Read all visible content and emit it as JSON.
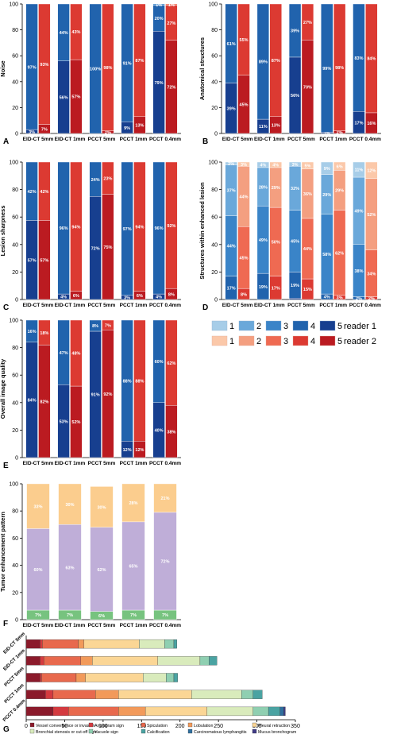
{
  "colors": {
    "reader1": [
      "#a7cde8",
      "#6aa8da",
      "#3a84c8",
      "#2163ad",
      "#173f8f"
    ],
    "reader2": [
      "#fbc8a9",
      "#f49f80",
      "#ef6a52",
      "#dc3a32",
      "#bb1b21"
    ],
    "enhancement": [
      "#77c37f",
      "#bfaed8",
      "#fbcd8e"
    ],
    "signs": [
      "#8b1a2b",
      "#d43a3f",
      "#e8694d",
      "#f29a5a",
      "#fbd695",
      "#d9ebbc",
      "#8fcfb1",
      "#4aa3a2",
      "#2f6f9f",
      "#413b86"
    ]
  },
  "chart_data": [
    {
      "panel": "A",
      "type": "bar",
      "stacked": true,
      "ylabel": "Noise",
      "ylim": [
        0,
        100
      ],
      "yticks": [
        "0",
        "20",
        "40",
        "60",
        "80",
        "100"
      ],
      "categories": [
        "EID-CT 5mm",
        "EID-CT 1mm",
        "PCCT 5mm",
        "PCCT 1mm",
        "PCCT 0.4mm"
      ],
      "series": [
        {
          "name": "reader 1",
          "values": [
            [
              0,
              0,
              0,
              97,
              3
            ],
            [
              0,
              0,
              0,
              44,
              56
            ],
            [
              0,
              0,
              0,
              100,
              0
            ],
            [
              0,
              0,
              0,
              91,
              9
            ],
            [
              0,
              0,
              1,
              20,
              79
            ]
          ],
          "labels": [
            [
              "",
              "",
              "",
              "97%",
              "3%"
            ],
            [
              "",
              "",
              "",
              "44%",
              "56%"
            ],
            [
              "",
              "",
              "",
              "100%",
              ""
            ],
            [
              "",
              "",
              "",
              "91%",
              "9%"
            ],
            [
              "",
              "",
              "1%",
              "20%",
              "79%"
            ]
          ]
        },
        {
          "name": "reader 2",
          "values": [
            [
              0,
              0,
              0,
              93,
              7
            ],
            [
              0,
              0,
              0,
              43,
              57
            ],
            [
              0,
              0,
              0,
              98,
              2
            ],
            [
              0,
              0,
              0,
              87,
              13
            ],
            [
              0,
              0,
              1,
              27,
              72
            ]
          ],
          "labels": [
            [
              "",
              "",
              "",
              "93%",
              "7%"
            ],
            [
              "",
              "",
              "",
              "43%",
              "57%"
            ],
            [
              "",
              "",
              "",
              "98%",
              "2%"
            ],
            [
              "",
              "",
              "",
              "87%",
              "13%"
            ],
            [
              "",
              "",
              "1%",
              "27%",
              "72%"
            ]
          ]
        }
      ]
    },
    {
      "panel": "B",
      "type": "bar",
      "stacked": true,
      "ylabel": "Anatomical structures",
      "ylim": [
        0,
        100
      ],
      "yticks": [
        "0",
        "20",
        "40",
        "60",
        "80",
        "100"
      ],
      "categories": [
        "EID-CT 5mm",
        "EID-CT 1mm",
        "PCCT 5mm",
        "PCCT 1mm",
        "PCCT 0.4mm"
      ],
      "series": [
        {
          "name": "reader 1",
          "values": [
            [
              0,
              0,
              0,
              61,
              39
            ],
            [
              0,
              0,
              0,
              89,
              11
            ],
            [
              0,
              0,
              0,
              39,
              56
            ],
            [
              0,
              0,
              0,
              99,
              1
            ],
            [
              0,
              0,
              0,
              83,
              17
            ]
          ],
          "labels": [
            [
              "",
              "",
              "",
              "61%",
              "39%"
            ],
            [
              "",
              "",
              "",
              "89%",
              "11%"
            ],
            [
              "",
              "",
              "",
              "39%",
              "56%"
            ],
            [
              "",
              "",
              "",
              "99%",
              "1%"
            ],
            [
              "",
              "",
              "",
              "83%",
              "17%"
            ]
          ]
        },
        {
          "name": "reader 2",
          "values": [
            [
              0,
              0,
              0,
              55,
              45
            ],
            [
              0,
              0,
              0,
              87,
              13
            ],
            [
              0,
              0,
              0,
              27,
              70
            ],
            [
              0,
              0,
              0,
              98,
              2
            ],
            [
              0,
              0,
              0,
              84,
              16
            ]
          ],
          "labels": [
            [
              "",
              "",
              "",
              "55%",
              "45%"
            ],
            [
              "",
              "",
              "",
              "87%",
              "13%"
            ],
            [
              "",
              "",
              "",
              "27%",
              "70%"
            ],
            [
              "",
              "",
              "",
              "98%",
              "2%"
            ],
            [
              "",
              "",
              "",
              "84%",
              "16%"
            ]
          ]
        }
      ]
    },
    {
      "panel": "C",
      "type": "bar",
      "stacked": true,
      "ylabel": "Lesion sharpness",
      "ylim": [
        0,
        100
      ],
      "yticks": [
        "0",
        "20",
        "40",
        "60",
        "80",
        "100"
      ],
      "categories": [
        "EID-CT 5mm",
        "EID-CT 1mm",
        "PCCT 5mm",
        "PCCT 1mm",
        "PCCT 0.4mm"
      ],
      "series": [
        {
          "name": "reader 1",
          "values": [
            [
              0,
              0,
              0,
              42,
              57
            ],
            [
              0,
              0,
              0,
              96,
              4
            ],
            [
              0,
              0,
              0,
              24,
              72
            ],
            [
              0,
              0,
              0,
              97,
              3
            ],
            [
              0,
              0,
              0,
              96,
              4
            ]
          ],
          "labels": [
            [
              "",
              "",
              "",
              "42%",
              "57%"
            ],
            [
              "",
              "",
              "",
              "96%",
              "4%"
            ],
            [
              "",
              "",
              "",
              "24%",
              "72%"
            ],
            [
              "",
              "",
              "",
              "97%",
              "3%"
            ],
            [
              "",
              "",
              "",
              "96%",
              "4%"
            ]
          ]
        },
        {
          "name": "reader 2",
          "values": [
            [
              0,
              0,
              0,
              42,
              57
            ],
            [
              0,
              0,
              0,
              94,
              6
            ],
            [
              0,
              0,
              0,
              23,
              75
            ],
            [
              0,
              0,
              0,
              94,
              6
            ],
            [
              0,
              0,
              0,
              92,
              8
            ]
          ],
          "labels": [
            [
              "",
              "",
              "",
              "42%",
              "57%"
            ],
            [
              "",
              "",
              "",
              "94%",
              "6%"
            ],
            [
              "",
              "",
              "",
              "23%",
              "75%"
            ],
            [
              "",
              "",
              "",
              "94%",
              "6%"
            ],
            [
              "",
              "",
              "",
              "92%",
              "8%"
            ]
          ]
        }
      ]
    },
    {
      "panel": "D",
      "type": "bar",
      "stacked": true,
      "ylabel": "Structures within enhanced lesion",
      "ylim": [
        0,
        100
      ],
      "yticks": [
        "0",
        "20",
        "40",
        "60",
        "80",
        "100"
      ],
      "categories": [
        "EID-CT 5mm",
        "EID-CT 1mm",
        "PCCT 5mm",
        "PCCT 1mm",
        "PCCT 0.4mm"
      ],
      "series": [
        {
          "name": "reader 1",
          "values": [
            [
              2,
              37,
              44,
              17,
              0
            ],
            [
              4,
              28,
              49,
              19,
              0
            ],
            [
              3,
              32,
              45,
              19,
              1
            ],
            [
              9,
              29,
              58,
              4,
              0
            ],
            [
              11,
              49,
              38,
              2,
              0
            ]
          ],
          "labels": [
            [
              "2%",
              "37%",
              "44%",
              "17%",
              ""
            ],
            [
              "4%",
              "28%",
              "49%",
              "19%",
              ""
            ],
            [
              "3%",
              "32%",
              "45%",
              "19%",
              ""
            ],
            [
              "9%",
              "29%",
              "58%",
              "4%",
              ""
            ],
            [
              "11%",
              "49%",
              "38%",
              "2%",
              ""
            ]
          ]
        },
        {
          "name": "reader 2",
          "values": [
            [
              3,
              44,
              45,
              8,
              0
            ],
            [
              4,
              29,
              50,
              17,
              0
            ],
            [
              5,
              36,
              44,
              15,
              0
            ],
            [
              6,
              29,
              62,
              3,
              0
            ],
            [
              12,
              52,
              34,
              2,
              0
            ]
          ],
          "labels": [
            [
              "3%",
              "44%",
              "45%",
              "8%",
              ""
            ],
            [
              "4%",
              "29%",
              "50%",
              "17%",
              ""
            ],
            [
              "5%",
              "36%",
              "44%",
              "15%",
              ""
            ],
            [
              "6%",
              "29%",
              "62%",
              "3%",
              ""
            ],
            [
              "12%",
              "52%",
              "34%",
              "2%",
              ""
            ]
          ]
        }
      ]
    },
    {
      "panel": "E",
      "type": "bar",
      "stacked": true,
      "ylabel": "Overall image quality",
      "ylim": [
        0,
        100
      ],
      "yticks": [
        "0",
        "20",
        "40",
        "60",
        "80",
        "100"
      ],
      "categories": [
        "EID-CT 5mm",
        "EID-CT 1mm",
        "PCCT 5mm",
        "PCCT 1mm",
        "PCCT 0.4mm"
      ],
      "series": [
        {
          "name": "reader 1",
          "values": [
            [
              0,
              0,
              0,
              16,
              84
            ],
            [
              0,
              0,
              0,
              47,
              53
            ],
            [
              0,
              0,
              0,
              8,
              91
            ],
            [
              0,
              0,
              0,
              88,
              12
            ],
            [
              0,
              0,
              0,
              60,
              40
            ]
          ],
          "labels": [
            [
              "",
              "",
              "",
              "16%",
              "84%"
            ],
            [
              "",
              "",
              "",
              "47%",
              "53%"
            ],
            [
              "",
              "",
              "",
              "8%",
              "91%"
            ],
            [
              "",
              "",
              "",
              "88%",
              "12%"
            ],
            [
              "",
              "",
              "",
              "60%",
              "40%"
            ]
          ]
        },
        {
          "name": "reader 2",
          "values": [
            [
              0,
              0,
              0,
              18,
              82
            ],
            [
              0,
              0,
              0,
              48,
              52
            ],
            [
              0,
              0,
              0,
              7,
              92
            ],
            [
              0,
              0,
              0,
              88,
              12
            ],
            [
              0,
              0,
              0,
              62,
              38
            ]
          ],
          "labels": [
            [
              "",
              "",
              "",
              "18%",
              "82%"
            ],
            [
              "",
              "",
              "",
              "48%",
              "52%"
            ],
            [
              "",
              "",
              "",
              "7%",
              "92%"
            ],
            [
              "",
              "",
              "",
              "88%",
              "12%"
            ],
            [
              "",
              "",
              "",
              "62%",
              "38%"
            ]
          ]
        }
      ]
    },
    {
      "panel": "F",
      "type": "bar",
      "stacked": true,
      "ylabel": "Tumor enhancement pattern",
      "ylim": [
        0,
        100
      ],
      "yticks": [
        "0",
        "20",
        "40",
        "60",
        "80",
        "100"
      ],
      "categories": [
        "EID-CT 5mm",
        "EID-CT 1mm",
        "PCCT 5mm",
        "PCCT 1mm",
        "PCCT 0.4mm"
      ],
      "values": [
        [
          7,
          60,
          33
        ],
        [
          7,
          63,
          30
        ],
        [
          6,
          62,
          30
        ],
        [
          7,
          65,
          28
        ],
        [
          7,
          72,
          21
        ]
      ],
      "labels": [
        [
          "7%",
          "60%",
          "33%"
        ],
        [
          "7%",
          "63%",
          "30%"
        ],
        [
          "6%",
          "62%",
          "30%"
        ],
        [
          "7%",
          "65%",
          "28%"
        ],
        [
          "7%",
          "72%",
          "21%"
        ]
      ]
    },
    {
      "panel": "G",
      "type": "bar",
      "orientation": "horizontal",
      "stacked": true,
      "xlim": [
        0,
        350
      ],
      "xticks": [
        "0",
        "50",
        "100",
        "150",
        "200",
        "250",
        "300",
        "350"
      ],
      "categories": [
        "EID-CT 5mm",
        "EID-CT 1mm",
        "PCCT 5mm",
        "PCCT 1mm",
        "PCCT 0.4mm"
      ],
      "legend": [
        "Vessel convergence or invasion",
        "Angiogram sign",
        "Spiculation",
        "Lobulation",
        "Pleural retraction",
        "Bronchial stenosis or cut-off sign",
        "Vacuole sign",
        "Calcification",
        "Carcinomatous lymphangitis",
        "Mucus bronchogram"
      ],
      "values": [
        [
          18,
          3,
          47,
          7,
          72,
          33,
          12,
          4,
          0,
          0
        ],
        [
          18,
          5,
          48,
          15,
          85,
          55,
          12,
          10,
          0,
          0
        ],
        [
          18,
          2,
          45,
          12,
          75,
          30,
          10,
          5,
          0,
          0
        ],
        [
          25,
          10,
          55,
          30,
          95,
          65,
          15,
          12,
          0,
          0
        ],
        [
          35,
          20,
          65,
          35,
          80,
          60,
          20,
          15,
          5,
          2
        ]
      ]
    }
  ],
  "legend": {
    "reader1_numbers": [
      "1",
      "2",
      "3",
      "4",
      "5"
    ],
    "reader1_label": "reader 1",
    "reader2_numbers": [
      "1",
      "2",
      "3",
      "4",
      "5"
    ],
    "reader2_label": "reader 2"
  }
}
